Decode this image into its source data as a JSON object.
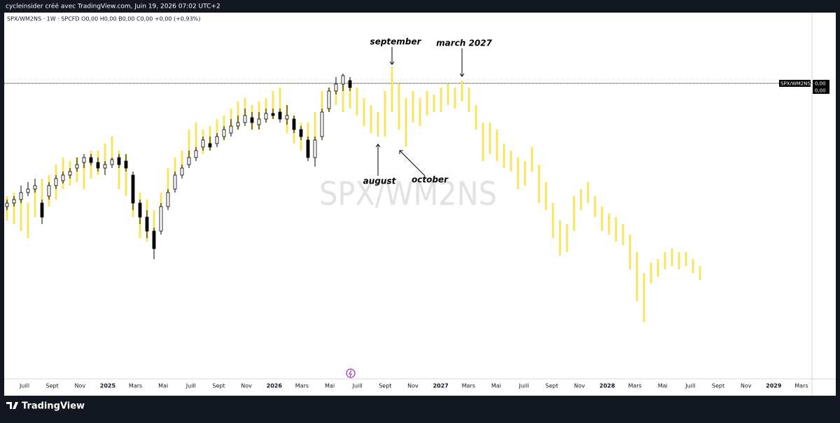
{
  "header": {
    "title": "cycleinsider créé avec TradingView.com, Juin 19, 2026 07:02 UTC+2"
  },
  "legend": {
    "symbol": "SPX/WM2NS · 1W · SPCFD  O0,00  H0,00  B0,00  C0,00  +0,00 (+0,93%)"
  },
  "footer": {
    "brand": "TradingView"
  },
  "chart_data": {
    "type": "candlestick",
    "watermark": "SPX/WM2NS",
    "ylim": [
      0,
      520
    ],
    "x_labels": [
      "Juill",
      "Sept",
      "Nov",
      "2025",
      "Mars",
      "Mai",
      "Juill",
      "Sept",
      "Nov",
      "2026",
      "Mars",
      "Mai",
      "Juill",
      "Sept",
      "Nov",
      "2027",
      "Mars",
      "Mai",
      "Juill",
      "Sept",
      "Nov",
      "2028",
      "Mars",
      "Mai",
      "Juill",
      "Sept",
      "Nov",
      "2029",
      "Mars"
    ],
    "candles": {
      "up_color": "#ffffff",
      "down_color": "#000000",
      "open": [
        245,
        250,
        255,
        265,
        270,
        250,
        260,
        275,
        282,
        290,
        300,
        308,
        315,
        308,
        300,
        305,
        315,
        310,
        290,
        250,
        230,
        210,
        210,
        245,
        270,
        290,
        305,
        315,
        330,
        335,
        335,
        345,
        350,
        360,
        365,
        372,
        362,
        370,
        378,
        380,
        370,
        370,
        355,
        340,
        315,
        345,
        385,
        410,
        420,
        425
      ],
      "high": [
        255,
        260,
        275,
        280,
        285,
        255,
        280,
        290,
        295,
        300,
        315,
        320,
        320,
        315,
        310,
        315,
        320,
        320,
        295,
        255,
        240,
        215,
        250,
        270,
        295,
        305,
        325,
        330,
        345,
        345,
        350,
        360,
        370,
        375,
        385,
        380,
        380,
        385,
        385,
        385,
        390,
        375,
        360,
        345,
        345,
        385,
        415,
        430,
        435,
        430
      ],
      "low": [
        240,
        245,
        250,
        260,
        265,
        220,
        255,
        270,
        278,
        285,
        295,
        300,
        304,
        295,
        290,
        300,
        300,
        295,
        240,
        220,
        200,
        170,
        205,
        240,
        265,
        285,
        300,
        310,
        325,
        325,
        330,
        340,
        345,
        355,
        360,
        355,
        355,
        365,
        370,
        365,
        362,
        350,
        340,
        310,
        302,
        340,
        380,
        405,
        410,
        410
      ],
      "close": [
        250,
        255,
        265,
        270,
        275,
        230,
        275,
        285,
        290,
        295,
        305,
        315,
        308,
        300,
        305,
        312,
        305,
        300,
        250,
        230,
        210,
        185,
        245,
        265,
        290,
        300,
        315,
        325,
        340,
        330,
        345,
        355,
        360,
        365,
        375,
        365,
        370,
        378,
        375,
        370,
        375,
        355,
        345,
        315,
        340,
        380,
        410,
        420,
        432,
        415
      ]
    },
    "projection": {
      "color": "#f7e463",
      "high": [
        260,
        265,
        265,
        250,
        270,
        285,
        290,
        305,
        315,
        310,
        315,
        310,
        325,
        325,
        335,
        345,
        325,
        320,
        280,
        265,
        255,
        240,
        265,
        300,
        315,
        325,
        355,
        365,
        355,
        360,
        370,
        375,
        385,
        395,
        400,
        390,
        395,
        400,
        410,
        415,
        390,
        375,
        365,
        365,
        380,
        410,
        415,
        420,
        420,
        415,
        415,
        400,
        390,
        380,
        410,
        445,
        420,
        400,
        410,
        400,
        410,
        405,
        415,
        420,
        415,
        425,
        415,
        390,
        365,
        365,
        355,
        335,
        325,
        315,
        310,
        330,
        305,
        280,
        250,
        225,
        220,
        260,
        270,
        280,
        260,
        245,
        235,
        230,
        220,
        205,
        180,
        150,
        165,
        170,
        180,
        185,
        180,
        180,
        170,
        160
      ],
      "low": [
        225,
        220,
        210,
        200,
        230,
        240,
        245,
        255,
        270,
        275,
        280,
        270,
        285,
        290,
        300,
        310,
        270,
        260,
        230,
        200,
        195,
        190,
        220,
        250,
        270,
        290,
        305,
        315,
        320,
        325,
        335,
        340,
        350,
        355,
        365,
        355,
        355,
        365,
        370,
        370,
        350,
        335,
        325,
        320,
        335,
        360,
        380,
        390,
        380,
        385,
        375,
        360,
        350,
        345,
        345,
        380,
        355,
        330,
        365,
        360,
        375,
        380,
        380,
        390,
        385,
        395,
        380,
        355,
        310,
        320,
        310,
        300,
        295,
        270,
        275,
        295,
        250,
        240,
        200,
        175,
        180,
        210,
        240,
        250,
        230,
        210,
        205,
        195,
        190,
        155,
        110,
        80,
        135,
        145,
        155,
        160,
        155,
        160,
        150,
        140
      ]
    },
    "level": {
      "value": 421,
      "label": "SPX/WM2NS",
      "price": "0,00",
      "price2": "0,00"
    },
    "annotations": [
      {
        "text": "september",
        "x_index": 55,
        "y": 445
      },
      {
        "text": "march 2027",
        "x_index": 65,
        "y": 428
      },
      {
        "text": "august",
        "x_index": 53,
        "y": 337
      },
      {
        "text": "october",
        "x_index": 56,
        "y": 327
      }
    ]
  }
}
